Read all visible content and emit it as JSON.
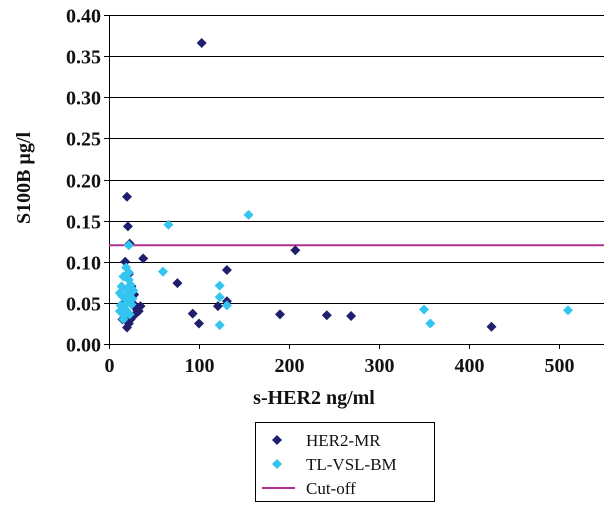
{
  "chart_data": {
    "type": "scatter",
    "title": "",
    "xlabel": "s-HER2 ng/ml",
    "ylabel": "S100B µg/l",
    "xlim": [
      0,
      550
    ],
    "ylim": [
      0,
      0.4
    ],
    "x_ticks": [
      {
        "value": 0,
        "label": "0"
      },
      {
        "value": 100,
        "label": "100"
      },
      {
        "value": 200,
        "label": "200"
      },
      {
        "value": 300,
        "label": "300"
      },
      {
        "value": 400,
        "label": "400"
      },
      {
        "value": 500,
        "label": "500"
      }
    ],
    "y_ticks": [
      {
        "value": 0.0,
        "label": "0.00"
      },
      {
        "value": 0.05,
        "label": "0.05"
      },
      {
        "value": 0.1,
        "label": "0.10"
      },
      {
        "value": 0.15,
        "label": "0.15"
      },
      {
        "value": 0.2,
        "label": "0.20"
      },
      {
        "value": 0.25,
        "label": "0.25"
      },
      {
        "value": 0.3,
        "label": "0.30"
      },
      {
        "value": 0.35,
        "label": "0.35"
      },
      {
        "value": 0.4,
        "label": "0.40"
      }
    ],
    "grid": {
      "horizontal": true,
      "vertical": false
    },
    "legend_position": "bottom",
    "series": [
      {
        "name": "HER2-MR",
        "kind": "scatter",
        "marker": "diamond",
        "color": "#1f1f6e",
        "points": [
          [
            103,
            0.366
          ],
          [
            20,
            0.179
          ],
          [
            21,
            0.143
          ],
          [
            23,
            0.122
          ],
          [
            38,
            0.104
          ],
          [
            207,
            0.114
          ],
          [
            131,
            0.09
          ],
          [
            76,
            0.074
          ],
          [
            93,
            0.037
          ],
          [
            100,
            0.025
          ],
          [
            121,
            0.046
          ],
          [
            131,
            0.052
          ],
          [
            190,
            0.036
          ],
          [
            242,
            0.035
          ],
          [
            269,
            0.034
          ],
          [
            425,
            0.021
          ],
          [
            18,
            0.1
          ],
          [
            22,
            0.085
          ],
          [
            25,
            0.07
          ],
          [
            28,
            0.06
          ],
          [
            30,
            0.045
          ],
          [
            35,
            0.046
          ],
          [
            33,
            0.04
          ],
          [
            28,
            0.035
          ],
          [
            24,
            0.03
          ],
          [
            22,
            0.025
          ],
          [
            20,
            0.02
          ],
          [
            19,
            0.055
          ],
          [
            17,
            0.05
          ],
          [
            26,
            0.05
          ],
          [
            31,
            0.042
          ],
          [
            15,
            0.03
          ]
        ]
      },
      {
        "name": "TL-VSL-BM",
        "kind": "scatter",
        "marker": "diamond",
        "color": "#33c4f0",
        "points": [
          [
            155,
            0.157
          ],
          [
            66,
            0.145
          ],
          [
            22,
            0.12
          ],
          [
            19,
            0.093
          ],
          [
            22,
            0.087
          ],
          [
            60,
            0.088
          ],
          [
            16,
            0.082
          ],
          [
            22,
            0.078
          ],
          [
            123,
            0.071
          ],
          [
            27,
            0.065
          ],
          [
            123,
            0.057
          ],
          [
            131,
            0.047
          ],
          [
            350,
            0.042
          ],
          [
            510,
            0.041
          ],
          [
            357,
            0.025
          ],
          [
            123,
            0.023
          ],
          [
            14,
            0.07
          ],
          [
            12,
            0.062
          ],
          [
            15,
            0.058
          ],
          [
            18,
            0.055
          ],
          [
            20,
            0.05
          ],
          [
            13,
            0.047
          ],
          [
            16,
            0.044
          ],
          [
            19,
            0.041
          ],
          [
            14,
            0.038
          ],
          [
            23,
            0.036
          ],
          [
            17,
            0.034
          ],
          [
            21,
            0.06
          ],
          [
            25,
            0.048
          ],
          [
            12,
            0.04
          ],
          [
            26,
            0.055
          ],
          [
            24,
            0.072
          ],
          [
            20,
            0.066
          ],
          [
            16,
            0.03
          ]
        ]
      },
      {
        "name": "Cut-off",
        "kind": "line",
        "color": "#b0308e",
        "y": 0.12
      }
    ]
  }
}
